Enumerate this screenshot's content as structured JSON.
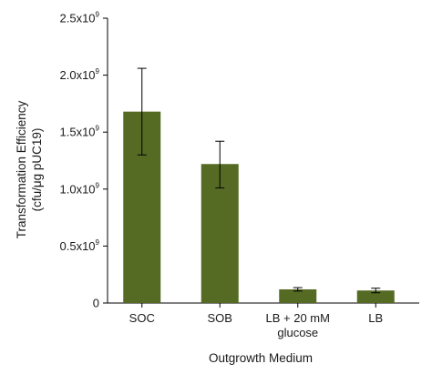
{
  "chart_data": {
    "type": "bar",
    "title": "",
    "xlabel": "Outgrowth Medium",
    "ylabel_lines": [
      "Transformation Efficiency",
      "(cfu/μg pUC19)"
    ],
    "ylim": [
      0,
      2500000000
    ],
    "y_ticks": [
      {
        "value": 0,
        "mantissa": "0",
        "exponent": ""
      },
      {
        "value": 500000000,
        "mantissa": "0.5x10",
        "exponent": "9"
      },
      {
        "value": 1000000000,
        "mantissa": "1.0x10",
        "exponent": "9"
      },
      {
        "value": 1500000000,
        "mantissa": "1.5x10",
        "exponent": "9"
      },
      {
        "value": 2000000000,
        "mantissa": "2.0x10",
        "exponent": "9"
      },
      {
        "value": 2500000000,
        "mantissa": "2.5x10",
        "exponent": "9"
      }
    ],
    "categories": [
      {
        "lines": [
          "SOC"
        ]
      },
      {
        "lines": [
          "SOB"
        ]
      },
      {
        "lines": [
          "LB + 20 mM",
          "glucose"
        ]
      },
      {
        "lines": [
          "LB"
        ]
      }
    ],
    "values": [
      1680000000,
      1220000000,
      120000000,
      110000000
    ],
    "error_low": [
      1300000000,
      1010000000,
      105000000,
      90000000
    ],
    "error_high": [
      2060000000,
      1420000000,
      135000000,
      130000000
    ],
    "bar_color": "#556b24",
    "grid": false,
    "legend": "none"
  }
}
